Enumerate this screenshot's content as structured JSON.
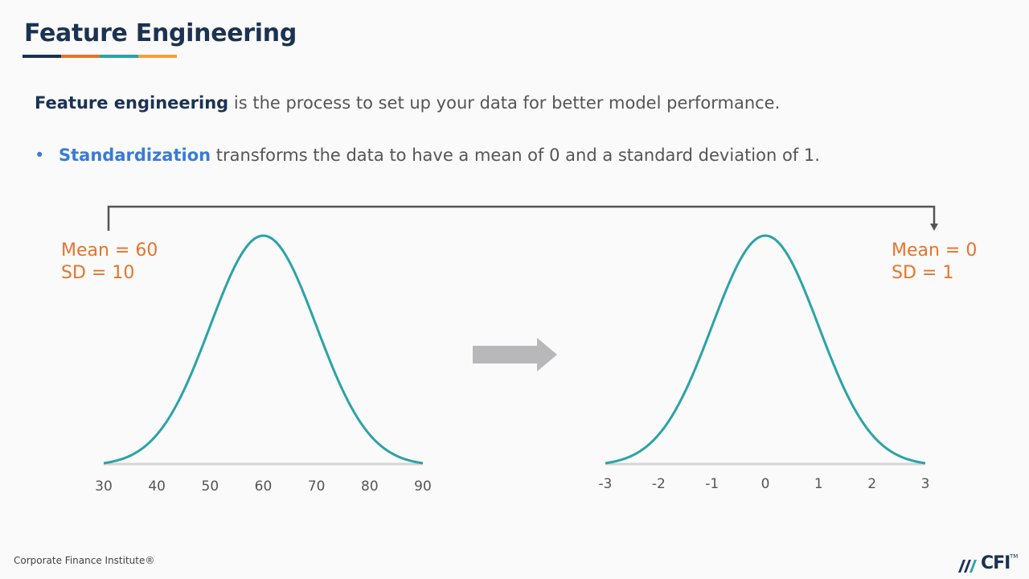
{
  "slide": {
    "title": "Feature Engineering",
    "underline_colors": [
      "#1b3252",
      "#e8732a",
      "#2aa3a8",
      "#f2a13b"
    ],
    "intro_term": "Feature engineering",
    "intro_rest": " is the process to set up your data for better model performance.",
    "bullet_symbol": "•",
    "bullet_term": "Standardization",
    "bullet_rest": " transforms the data to have a mean of 0 and a standard deviation of 1.",
    "left_stats": {
      "mean": "Mean = 60",
      "sd": "SD = 10"
    },
    "right_stats": {
      "mean": "Mean = 0",
      "sd": "SD = 1"
    },
    "footer": "Corporate Finance Institute®",
    "logo_text": "CFI",
    "logo_tm": "TM",
    "arrow_icon": "right-arrow-icon",
    "colors": {
      "curve": "#2aa3a8",
      "accent": "#e8732a",
      "navy": "#1b3252",
      "highlight": "#3a7bd5",
      "arrow": "#b8b8bb",
      "connector": "#555555"
    }
  },
  "chart_data": [
    {
      "type": "line",
      "title": "",
      "xlabel": "",
      "ylabel": "",
      "x_ticks": [
        "30",
        "40",
        "50",
        "60",
        "70",
        "80",
        "90"
      ],
      "xlim": [
        30,
        90
      ],
      "mean": 60,
      "sd": 10,
      "series": [
        {
          "name": "",
          "distribution": "normal",
          "mean": 60,
          "sd": 10
        }
      ]
    },
    {
      "type": "line",
      "title": "",
      "xlabel": "",
      "ylabel": "",
      "x_ticks": [
        "-3",
        "-2",
        "-1",
        "0",
        "1",
        "2",
        "3"
      ],
      "xlim": [
        -3,
        3
      ],
      "mean": 0,
      "sd": 1,
      "series": [
        {
          "name": "",
          "distribution": "normal",
          "mean": 0,
          "sd": 1
        }
      ]
    }
  ]
}
